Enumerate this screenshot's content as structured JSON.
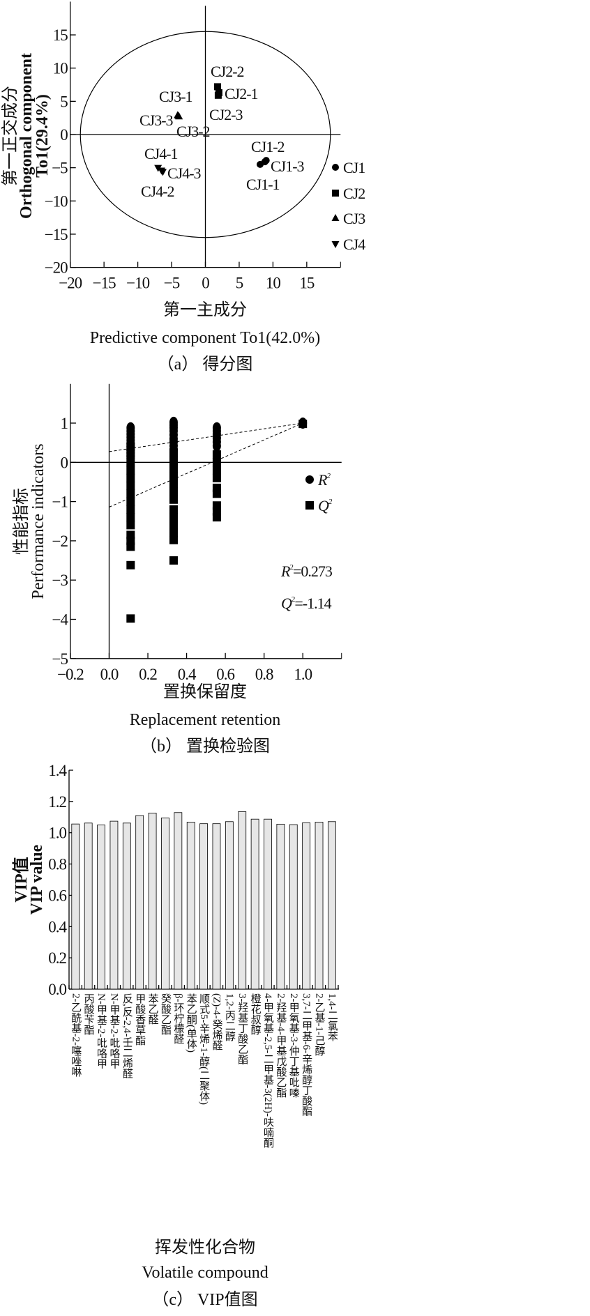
{
  "chart_data": [
    {
      "type": "scatter",
      "caption": "（a） 得分图",
      "xlabel_cn": "第一主成分",
      "xlabel": "Predictive component To1(42.0%)",
      "ylabel_cn": "第一正交成分",
      "ylabel": "Orthogonal component",
      "ylabel2": "To1(29.4%)",
      "xlim": [
        -20,
        20
      ],
      "ylim": [
        -20,
        20
      ],
      "xticks": [
        -20,
        -15,
        -10,
        -5,
        0,
        5,
        10,
        15
      ],
      "yticks": [
        -20,
        -15,
        -10,
        -5,
        0,
        5,
        10,
        15
      ],
      "ellipse": {
        "rx": 18.5,
        "ry": 15.5
      },
      "legend_position": "right",
      "series": [
        {
          "name": "CJ1",
          "marker": "circle",
          "points": [
            {
              "label": "CJ1-1",
              "x": 8.1,
              "y": -4.5
            },
            {
              "label": "CJ1-2",
              "x": 8.8,
              "y": -4.1
            },
            {
              "label": "CJ1-3",
              "x": 9.0,
              "y": -3.9
            }
          ]
        },
        {
          "name": "CJ2",
          "marker": "square",
          "points": [
            {
              "label": "CJ2-1",
              "x": 2.0,
              "y": 6.3
            },
            {
              "label": "CJ2-2",
              "x": 1.8,
              "y": 7.2
            },
            {
              "label": "CJ2-3",
              "x": 1.9,
              "y": 5.9
            }
          ]
        },
        {
          "name": "CJ3",
          "marker": "triangle-up",
          "points": [
            {
              "label": "CJ3-1",
              "x": -4.1,
              "y": 2.9
            },
            {
              "label": "CJ3-2",
              "x": -3.9,
              "y": 2.7
            },
            {
              "label": "CJ3-3",
              "x": -4.0,
              "y": 2.8
            }
          ]
        },
        {
          "name": "CJ4",
          "marker": "triangle-down",
          "points": [
            {
              "label": "CJ4-1",
              "x": -7.0,
              "y": -5.0
            },
            {
              "label": "CJ4-2",
              "x": -6.5,
              "y": -5.4
            },
            {
              "label": "CJ4-3",
              "x": -6.3,
              "y": -5.6
            }
          ]
        }
      ]
    },
    {
      "type": "scatter",
      "caption": "（b） 置换检验图",
      "xlabel_cn": "置换保留度",
      "xlabel": "Replacement retention",
      "ylabel_cn": "性能指标",
      "ylabel": "Performance indicators",
      "xlim": [
        -0.2,
        1.2
      ],
      "ylim": [
        -5,
        2
      ],
      "xticks": [
        "-0.2",
        "0.0",
        "0.2",
        "0.4",
        "0.6",
        "0.8",
        "1.0"
      ],
      "yticks": [
        -5,
        -4,
        -3,
        -2,
        -1,
        0,
        1
      ],
      "legend_position": "right",
      "legend": [
        {
          "name": "R",
          "sup": "2",
          "marker": "circle"
        },
        {
          "name": "Q",
          "sup": "2",
          "marker": "square"
        }
      ],
      "annotations": [
        {
          "name": "R",
          "sup": "2",
          "text": "=0.273"
        },
        {
          "name": "Q",
          "sup": "2",
          "text": "=-1.14"
        }
      ],
      "series": [
        {
          "name": "R2",
          "marker": "circle",
          "points": [
            [
              0.111,
              0.88
            ],
            [
              0.111,
              0.8
            ],
            [
              0.111,
              0.72
            ],
            [
              0.111,
              0.64
            ],
            [
              0.111,
              0.56
            ],
            [
              0.111,
              0.48
            ],
            [
              0.111,
              0.4
            ],
            [
              0.111,
              0.32
            ],
            [
              0.111,
              0.24
            ],
            [
              0.111,
              0.16
            ],
            [
              0.333,
              1.02
            ],
            [
              0.333,
              0.95
            ],
            [
              0.333,
              0.88
            ],
            [
              0.333,
              0.8
            ],
            [
              0.333,
              0.7
            ],
            [
              0.333,
              0.6
            ],
            [
              0.333,
              0.52
            ],
            [
              0.333,
              0.42
            ],
            [
              0.333,
              0.32
            ],
            [
              0.556,
              0.88
            ],
            [
              0.556,
              0.8
            ],
            [
              0.556,
              0.72
            ],
            [
              0.556,
              0.62
            ],
            [
              0.556,
              0.52
            ],
            [
              0.556,
              0.42
            ],
            [
              1.0,
              1.0
            ]
          ]
        },
        {
          "name": "Q2",
          "marker": "square",
          "points": [
            [
              0.111,
              0.4
            ],
            [
              0.111,
              0.2
            ],
            [
              0.111,
              0.0
            ],
            [
              0.111,
              -0.2
            ],
            [
              0.111,
              -0.4
            ],
            [
              0.111,
              -0.6
            ],
            [
              0.111,
              -0.8
            ],
            [
              0.111,
              -1.0
            ],
            [
              0.111,
              -1.2
            ],
            [
              0.111,
              -1.4
            ],
            [
              0.111,
              -1.6
            ],
            [
              0.111,
              -1.85
            ],
            [
              0.111,
              -2.0
            ],
            [
              0.111,
              -2.15
            ],
            [
              0.111,
              -2.62
            ],
            [
              0.111,
              -3.98
            ],
            [
              0.333,
              0.25
            ],
            [
              0.333,
              0.05
            ],
            [
              0.333,
              -0.15
            ],
            [
              0.333,
              -0.35
            ],
            [
              0.333,
              -0.55
            ],
            [
              0.333,
              -0.75
            ],
            [
              0.333,
              -0.95
            ],
            [
              0.333,
              -1.2
            ],
            [
              0.333,
              -1.4
            ],
            [
              0.333,
              -1.6
            ],
            [
              0.333,
              -1.8
            ],
            [
              0.333,
              -1.98
            ],
            [
              0.333,
              -2.5
            ],
            [
              0.556,
              0.2
            ],
            [
              0.556,
              0.0
            ],
            [
              0.556,
              -0.2
            ],
            [
              0.556,
              -0.4
            ],
            [
              0.556,
              -0.65
            ],
            [
              0.556,
              -0.8
            ],
            [
              0.556,
              -1.1
            ],
            [
              0.556,
              -1.25
            ],
            [
              0.556,
              -1.4
            ],
            [
              1.0,
              0.98
            ]
          ]
        }
      ],
      "regression": [
        {
          "name": "R2",
          "intercept": 0.273,
          "end": [
            1.0,
            1.0
          ]
        },
        {
          "name": "Q2",
          "intercept": -1.14,
          "end": [
            1.0,
            1.0
          ]
        }
      ]
    },
    {
      "type": "bar",
      "caption": "（c） VIP值图",
      "xlabel_cn": "挥发性化合物",
      "xlabel": "Volatile compound",
      "ylabel_cn": "VIP值",
      "ylabel": "VIP value",
      "ylim": [
        0,
        1.4
      ],
      "yticks": [
        "0.0",
        "0.2",
        "0.4",
        "0.6",
        "0.8",
        "1.0",
        "1.2",
        "1.4"
      ],
      "bar_color": "#e6e6e6",
      "categories": [
        "2-乙酰基-2-噻唑啉",
        "丙酸苄酯",
        "N-甲基-2-吡咯甲",
        "N-甲基-2-吡咯甲",
        "反,反-2,4-壬二烯醛",
        "甲酸香草酯",
        "苯乙醛",
        "癸酸乙酯",
        "β-环柠檬醛",
        "苯乙酮(单体)",
        "顺式5-辛烯-1-醇(二聚体)",
        "(Z)-4-癸烯醛",
        "1,2-丙二醇",
        "3-羟基丁酸乙酯",
        "橙花叔醇",
        "4-甲氧基-2,5-二甲基-3(2H)-呋喃酮",
        "2-羟基-4-甲基戊酸乙酯",
        "2-甲氧基-3-仲丁基吡嗪",
        "3,7-二甲基-6-辛烯醇丁酸酯",
        "2-乙基-1-己醇",
        "1,4-二氯苯"
      ],
      "values": [
        1.056,
        1.062,
        1.05,
        1.074,
        1.062,
        1.11,
        1.126,
        1.095,
        1.129,
        1.068,
        1.058,
        1.058,
        1.071,
        1.135,
        1.087,
        1.087,
        1.055,
        1.052,
        1.064,
        1.068,
        1.071
      ]
    }
  ]
}
